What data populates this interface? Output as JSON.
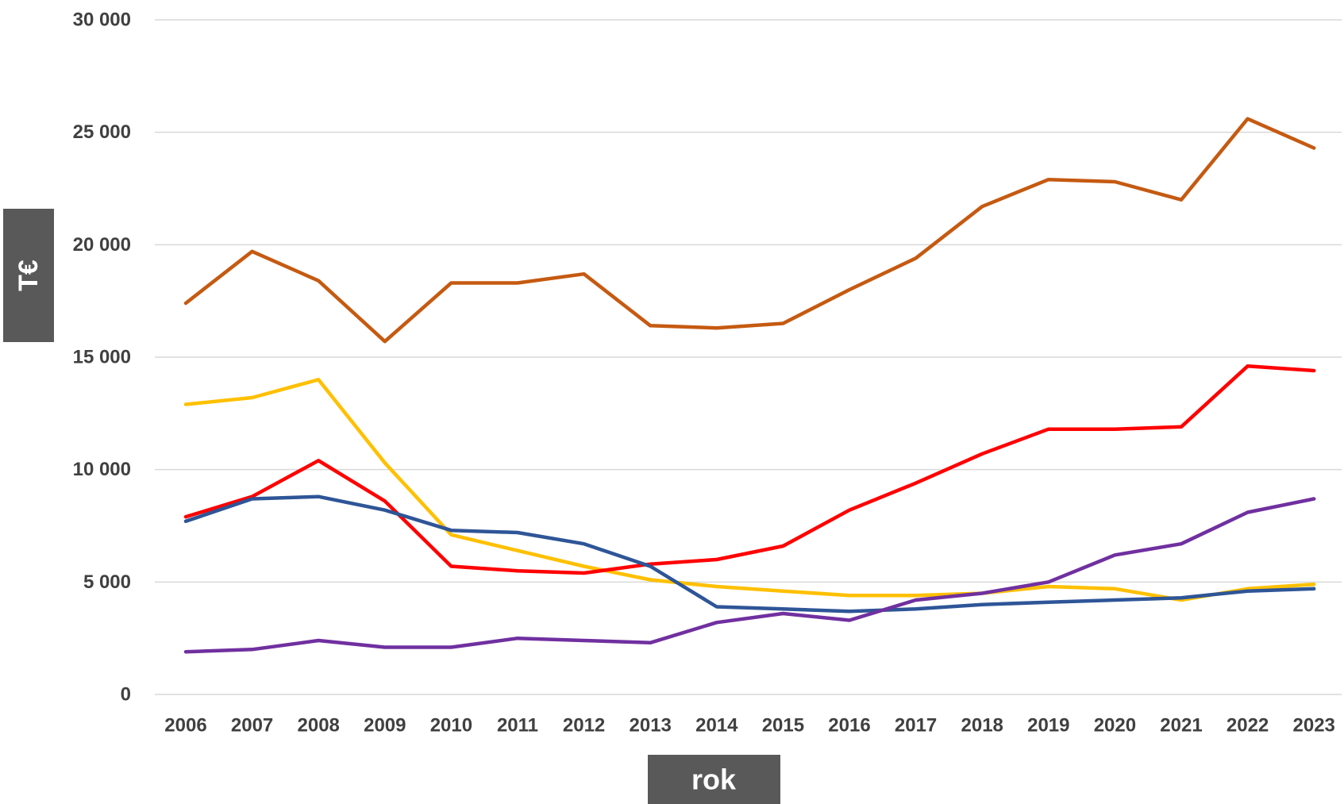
{
  "chart_data": {
    "type": "line",
    "title": "",
    "xlabel": "rok",
    "ylabel": "T€",
    "ylim": [
      0,
      30000
    ],
    "yticks": [
      0,
      5000,
      10000,
      15000,
      20000,
      25000,
      30000
    ],
    "ytick_labels": [
      "0",
      "5 000",
      "10 000",
      "15 000",
      "20 000",
      "25 000",
      "30 000"
    ],
    "categories": [
      "2006",
      "2007",
      "2008",
      "2009",
      "2010",
      "2011",
      "2012",
      "2013",
      "2014",
      "2015",
      "2016",
      "2017",
      "2018",
      "2019",
      "2020",
      "2021",
      "2022",
      "2023"
    ],
    "grid": true,
    "legend": "none",
    "series": [
      {
        "color": "#c55a11",
        "values": [
          17400,
          19700,
          18400,
          15700,
          18300,
          18300,
          18700,
          16400,
          16300,
          16500,
          18000,
          19400,
          21700,
          22900,
          22800,
          22000,
          25600,
          24300
        ]
      },
      {
        "color": "#ffc000",
        "values": [
          12900,
          13200,
          14000,
          10300,
          7100,
          6400,
          5700,
          5100,
          4800,
          4600,
          4400,
          4400,
          4500,
          4800,
          4700,
          4200,
          4700,
          4900
        ]
      },
      {
        "color": "#ff0000",
        "values": [
          7900,
          8800,
          10400,
          8600,
          5700,
          5500,
          5400,
          5800,
          6000,
          6600,
          8200,
          9400,
          10700,
          11800,
          11800,
          11900,
          14600,
          14400
        ]
      },
      {
        "color": "#2e5597",
        "values": [
          7700,
          8700,
          8800,
          8200,
          7300,
          7200,
          6700,
          5700,
          3900,
          3800,
          3700,
          3800,
          4000,
          4100,
          4200,
          4300,
          4600,
          4700
        ]
      },
      {
        "color": "#7030a0",
        "values": [
          1900,
          2000,
          2400,
          2100,
          2100,
          2500,
          2400,
          2300,
          3200,
          3600,
          3300,
          4200,
          4500,
          5000,
          6200,
          6700,
          8100,
          8700
        ]
      }
    ]
  }
}
